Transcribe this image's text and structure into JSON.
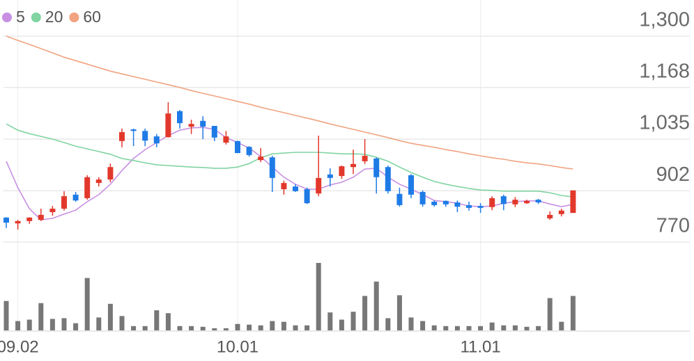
{
  "chart_data": {
    "type": "candlestick",
    "categories": [
      null,
      "09.02",
      null,
      null,
      null,
      null,
      null,
      null,
      null,
      null,
      null,
      null,
      null,
      null,
      null,
      null,
      null,
      null,
      null,
      null,
      "10.01",
      null,
      null,
      null,
      null,
      null,
      null,
      null,
      null,
      null,
      null,
      null,
      null,
      null,
      null,
      null,
      null,
      null,
      null,
      null,
      null,
      "11.01",
      null,
      null,
      null,
      null,
      null,
      null,
      null,
      null
    ],
    "open": [
      833,
      818,
      824,
      827,
      847,
      856,
      892,
      883,
      922,
      931,
      1030,
      1060,
      1056,
      1042,
      1040,
      1107,
      1067,
      1082,
      1069,
      1026,
      1030,
      1015,
      981,
      988,
      906,
      913,
      906,
      895,
      944,
      940,
      963,
      978,
      985,
      963,
      894,
      942,
      899,
      874,
      876,
      872,
      865,
      863,
      860,
      888,
      867,
      870,
      879,
      831,
      842,
      845
    ],
    "high": [
      834,
      827,
      834,
      856,
      863,
      901,
      899,
      942,
      937,
      972,
      1062,
      1062,
      1062,
      1048,
      1130,
      1110,
      1085,
      1094,
      1069,
      1056,
      1031,
      1017,
      1012,
      992,
      928,
      919,
      910,
      1044,
      960,
      967,
      1008,
      1035,
      988,
      967,
      910,
      945,
      903,
      877,
      877,
      877,
      874,
      870,
      888,
      892,
      886,
      879,
      881,
      849,
      856,
      903
    ],
    "low": [
      806,
      802,
      817,
      824,
      838,
      851,
      874,
      879,
      913,
      924,
      1014,
      1017,
      1017,
      1014,
      1039,
      1062,
      1048,
      1035,
      1030,
      1021,
      999,
      990,
      976,
      899,
      892,
      899,
      868,
      888,
      913,
      933,
      945,
      971,
      895,
      895,
      861,
      883,
      861,
      861,
      861,
      847,
      851,
      845,
      852,
      852,
      860,
      868,
      868,
      827,
      836,
      845
    ],
    "close": [
      820,
      824,
      833,
      840,
      856,
      888,
      877,
      937,
      931,
      963,
      1053,
      1056,
      1031,
      1024,
      1101,
      1076,
      1074,
      1067,
      1039,
      1042,
      999,
      994,
      990,
      935,
      922,
      901,
      870,
      935,
      935,
      965,
      971,
      992,
      937,
      901,
      865,
      892,
      867,
      865,
      867,
      861,
      858,
      858,
      883,
      868,
      879,
      876,
      872,
      840,
      851,
      903
    ],
    "volume": [
      41000,
      13000,
      15000,
      38000,
      16000,
      17000,
      10000,
      73000,
      18000,
      37000,
      20000,
      6000,
      6000,
      28000,
      24000,
      6000,
      6000,
      5000,
      3000,
      3000,
      9000,
      8000,
      7000,
      13000,
      12000,
      7000,
      7000,
      94000,
      25000,
      15000,
      26000,
      48000,
      68000,
      17000,
      49000,
      18000,
      13000,
      7000,
      6000,
      6000,
      6000,
      6000,
      11000,
      7000,
      7000,
      5000,
      6000,
      45000,
      12000,
      48000
    ],
    "up_color": "#e2382b",
    "down_color": "#1e7be6",
    "volume_color": "#777777",
    "series": [
      {
        "name": "5",
        "color": "#c88fe3",
        "values": [
          978,
          910,
          856,
          827,
          831,
          842,
          852,
          874,
          892,
          919,
          954,
          985,
          1008,
          1026,
          1044,
          1058,
          1064,
          1065,
          1060,
          1039,
          1026,
          1012,
          990,
          963,
          937,
          919,
          906,
          906,
          917,
          924,
          937,
          958,
          960,
          937,
          919,
          906,
          892,
          877,
          874,
          870,
          863,
          861,
          863,
          870,
          874,
          876,
          876,
          868,
          861,
          867
        ]
      },
      {
        "name": "20",
        "color": "#80d4a2",
        "values": [
          1074,
          1058,
          1049,
          1042,
          1035,
          1026,
          1017,
          1010,
          1003,
          996,
          985,
          980,
          974,
          969,
          967,
          965,
          963,
          962,
          960,
          960,
          963,
          972,
          987,
          997,
          999,
          1001,
          1001,
          1001,
          999,
          997,
          997,
          996,
          988,
          978,
          963,
          949,
          937,
          926,
          919,
          913,
          908,
          904,
          903,
          901,
          901,
          901,
          901,
          897,
          890,
          886
        ]
      },
      {
        "name": "60",
        "color": "#f2a380",
        "values": [
          1300,
          1289,
          1279,
          1268,
          1257,
          1246,
          1237,
          1228,
          1219,
          1210,
          1203,
          1196,
          1189,
          1182,
          1175,
          1168,
          1160,
          1153,
          1146,
          1139,
          1132,
          1125,
          1117,
          1110,
          1103,
          1096,
          1089,
          1082,
          1074,
          1067,
          1060,
          1053,
          1046,
          1039,
          1031,
          1024,
          1019,
          1014,
          1008,
          1003,
          997,
          992,
          987,
          983,
          978,
          974,
          971,
          967,
          962,
          958
        ]
      }
    ],
    "ylim": [
      770,
      1300
    ],
    "yticks": [
      {
        "value": 1300,
        "label": "1,300"
      },
      {
        "value": 1168,
        "label": "1,168"
      },
      {
        "value": 1035,
        "label": "1,035"
      },
      902,
      770
    ],
    "grid": true,
    "legend": "top-left"
  }
}
